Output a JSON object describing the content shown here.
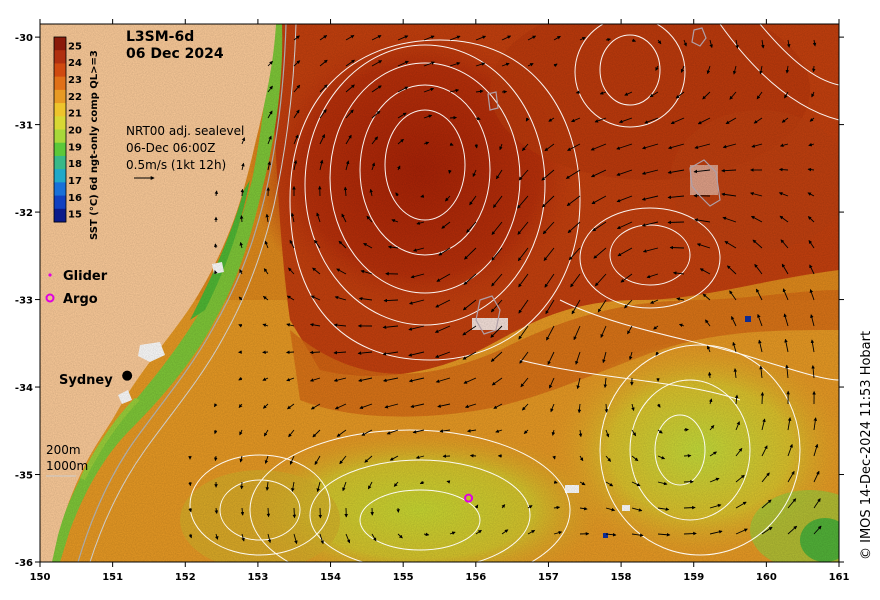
{
  "map": {
    "title_line1": "L3SM-6d",
    "title_line2": "06 Dec 2024",
    "info_line1": "NRT00 adj. sealevel",
    "info_line2": "06-Dec 06:00Z",
    "info_line3": "0.5m/s (1kt 12h)",
    "credit": "© IMOS 14-Dec-2024 11:53 Hobart",
    "lon_ticks": [
      "150",
      "151",
      "152",
      "153",
      "154",
      "155",
      "156",
      "157",
      "158",
      "159",
      "160",
      "161"
    ],
    "lat_ticks": [
      "-30",
      "-31",
      "-32",
      "-33",
      "-34",
      "-35",
      "-36"
    ],
    "lon_range": [
      150,
      161
    ],
    "lat_range": [
      -36,
      -29.85
    ],
    "colorbar": {
      "label": "SST (°C) 6d ngt-only comp QL>=3",
      "ticks": [
        "25",
        "24",
        "23",
        "22",
        "21",
        "20",
        "19",
        "18",
        "17",
        "16",
        "15"
      ],
      "range": [
        14.5,
        25.5
      ]
    },
    "legend": {
      "glider": "Glider",
      "argo": "Argo",
      "glider_color": "#e000e0",
      "argo_color": "#e000e0"
    },
    "city": {
      "name": "Sydney",
      "lon": 151.2,
      "lat": -33.87
    },
    "isobaths": {
      "shallow": "200m",
      "deep": "1000m"
    },
    "argo_float": {
      "lon": 155.9,
      "lat": -35.27
    },
    "colors": {
      "land": "#fdcc9a",
      "warm_core": "#b02808",
      "warm": "#d85a10",
      "mid": "#e69a22",
      "cool": "#d8cc2a",
      "cooler": "#a8d83a",
      "coastal_green": "#5bc23a"
    }
  }
}
